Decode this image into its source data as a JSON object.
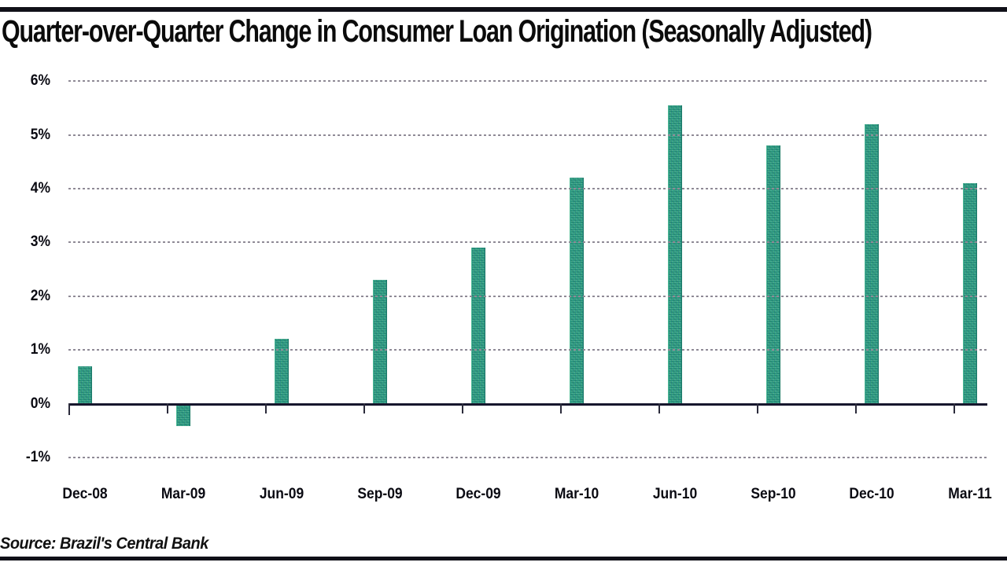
{
  "header": {
    "title": "Quarter-over-Quarter Change in Consumer Loan Origination (Seasonally Adjusted)"
  },
  "chart_data": {
    "type": "bar",
    "title": "Quarter-over-Quarter Change in Consumer Loan Origination (Seasonally Adjusted)",
    "categories": [
      "Dec-08",
      "Mar-09",
      "Jun-09",
      "Sep-09",
      "Dec-09",
      "Mar-10",
      "Jun-10",
      "Sep-10",
      "Dec-10",
      "Mar-11"
    ],
    "values": [
      0.7,
      -0.4,
      1.2,
      2.3,
      2.9,
      4.2,
      5.55,
      4.8,
      5.2,
      4.1
    ],
    "xlabel": "",
    "ylabel": "",
    "ylim": [
      -1,
      6
    ],
    "ytick_values": [
      6,
      5,
      4,
      3,
      2,
      1,
      0,
      -1
    ],
    "ytick_labels": [
      "6%",
      "5%",
      "4%",
      "3%",
      "2%",
      "1%",
      "0%",
      "-1%"
    ],
    "grid": "horizontal-dotted",
    "legend": "none",
    "bar_color": "#2F9D7F",
    "gridline_color": "#8F8A96",
    "axis_color": "#16162C"
  },
  "footer": {
    "source": "Source: Brazil's Central Bank"
  }
}
